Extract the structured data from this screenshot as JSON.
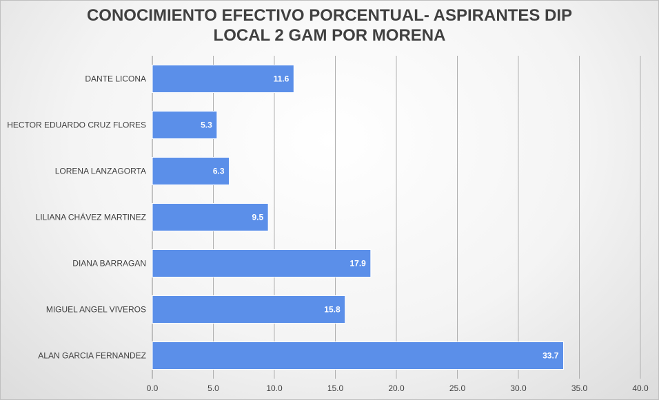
{
  "chart_data": {
    "type": "bar",
    "orientation": "horizontal",
    "title_lines": [
      "CONOCIMIENTO EFECTIVO PORCENTUAL- ASPIRANTES DIP",
      "LOCAL 2 GAM POR MORENA"
    ],
    "title": "CONOCIMIENTO EFECTIVO PORCENTUAL- ASPIRANTES DIP LOCAL 2 GAM POR MORENA",
    "categories": [
      "DANTE LICONA",
      "HECTOR EDUARDO CRUZ FLORES",
      "LORENA LANZAGORTA",
      "LILIANA CHÁVEZ MARTINEZ",
      "DIANA BARRAGAN",
      "MIGUEL ANGEL VIVEROS",
      "ALAN GARCIA FERNANDEZ"
    ],
    "values": [
      11.6,
      5.3,
      6.3,
      9.5,
      17.9,
      15.8,
      33.7
    ],
    "value_labels": [
      "11.6",
      "5.3",
      "6.3",
      "9.5",
      "17.9",
      "15.8",
      "33.7"
    ],
    "xlim": [
      0,
      40
    ],
    "x_ticks": [
      0,
      5,
      10,
      15,
      20,
      25,
      30,
      35,
      40
    ],
    "x_tick_labels": [
      "0.0",
      "5.0",
      "10.0",
      "15.0",
      "20.0",
      "25.0",
      "30.0",
      "35.0",
      "40.0"
    ],
    "xlabel": "",
    "ylabel": "",
    "grid": "vertical",
    "legend": "none",
    "bar_color": "#5b8fe9",
    "bar_border_color": "#ffffff",
    "gridline_color": "#b0b0b0"
  }
}
